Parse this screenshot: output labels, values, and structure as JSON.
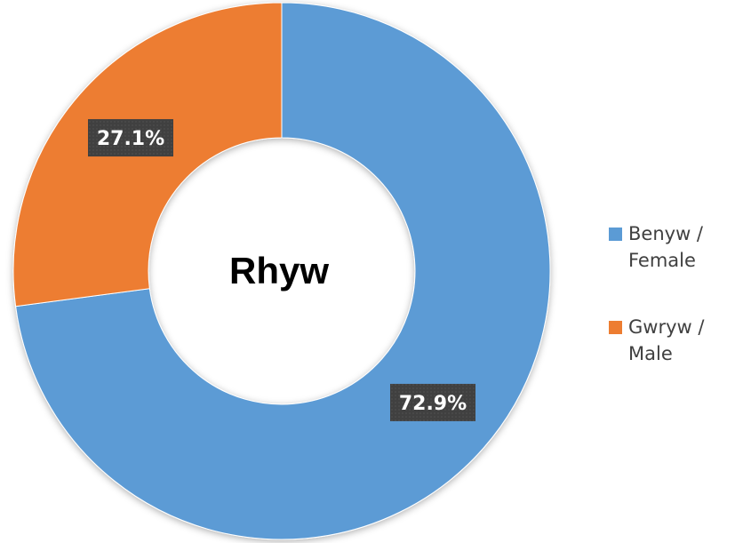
{
  "chart_data": {
    "type": "donut",
    "title": "Rhyw",
    "categories": [
      "Benyw / Female",
      "Gwryw / Male"
    ],
    "values": [
      72.9,
      27.1
    ],
    "value_labels": [
      "72.9%",
      "27.1%"
    ],
    "colors": [
      "#5b9bd5",
      "#ed7d31"
    ],
    "legend": "right"
  }
}
